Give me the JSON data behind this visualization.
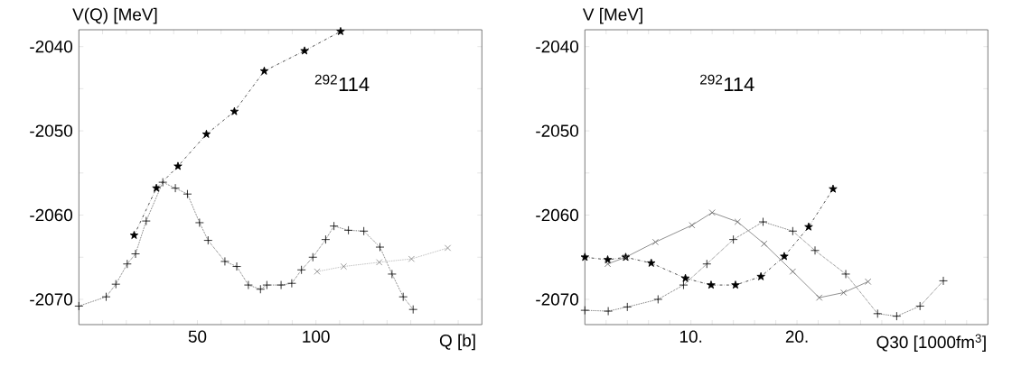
{
  "chart_data": [
    {
      "type": "line",
      "xlabel": "Q [b]",
      "ylabel": "V(Q) [MeV]",
      "annotations": [
        "$^{292}$114"
      ],
      "xlim": [
        0,
        170
      ],
      "ylim": [
        -2073,
        -2038
      ],
      "xticks": [
        {
          "value": 10,
          "label": null
        },
        {
          "value": 20,
          "label": null
        },
        {
          "value": 30,
          "label": null
        },
        {
          "value": 40,
          "label": null
        },
        50,
        {
          "value": 60,
          "label": null
        },
        {
          "value": 70,
          "label": null
        },
        {
          "value": 80,
          "label": null
        },
        {
          "value": 90,
          "label": null
        },
        100,
        {
          "value": 110,
          "label": null
        },
        {
          "value": 120,
          "label": null
        },
        {
          "value": 130,
          "label": null
        },
        {
          "value": 140,
          "label": null
        },
        {
          "value": 150,
          "label": null
        },
        {
          "value": 160,
          "label": null
        }
      ],
      "yticks": [
        -2070,
        {
          "value": -2065,
          "label": null
        },
        -2060,
        {
          "value": -2055,
          "label": null
        },
        -2050,
        {
          "value": -2045,
          "label": null
        },
        -2040
      ],
      "series": [
        {
          "color": "#000000",
          "marker": "star",
          "line_style": "dashed",
          "x": [
            23.3,
            32.7,
            41.8,
            53.8,
            65.6,
            78.2,
            95.2,
            110.4
          ],
          "values": [
            -2062.4,
            -2056.8,
            -2054.2,
            -2050.4,
            -2047.7,
            -2042.9,
            -2040.5,
            -2038.2
          ]
        },
        {
          "color": "#000000",
          "marker": "plus",
          "line_style": "dotted",
          "x": [
            0,
            11.5,
            15.6,
            20.4,
            23.9,
            28.4,
            35.4,
            40.7,
            45.8,
            50.9,
            54.5,
            61.6,
            66.6,
            71.5,
            76.6,
            79.3,
            85.3,
            89.8,
            93.9,
            98.7,
            104.1,
            107.6,
            113.7,
            120.2,
            127,
            132.1,
            136.8,
            141
          ],
          "values": [
            -2070.8,
            -2069.7,
            -2068.2,
            -2065.8,
            -2064.6,
            -2060.7,
            -2056.1,
            -2056.8,
            -2057.5,
            -2060.9,
            -2063.0,
            -2065.5,
            -2066.1,
            -2068.3,
            -2068.8,
            -2068.3,
            -2068.3,
            -2068.1,
            -2066.5,
            -2065.0,
            -2062.9,
            -2061.3,
            -2061.8,
            -2061.9,
            -2063.8,
            -2067.0,
            -2069.7,
            -2071.2
          ]
        },
        {
          "color": "#808080",
          "marker": "cross",
          "line_style": "dotted",
          "x": [
            100.5,
            111.7,
            126.7,
            140.3,
            155.6
          ],
          "values": [
            -2066.7,
            -2066.1,
            -2065.6,
            -2065.2,
            -2063.9
          ]
        }
      ]
    },
    {
      "type": "line",
      "xlabel": "Q30 [1000fm$^{3}$]",
      "ylabel": "V [MeV]",
      "annotations": [
        "$^{292}$114"
      ],
      "xlim": [
        0,
        38
      ],
      "ylim": [
        -2073,
        -2038
      ],
      "xticks": [
        {
          "value": 2,
          "label": null
        },
        {
          "value": 4,
          "label": null
        },
        {
          "value": 6,
          "label": null
        },
        {
          "value": 8,
          "label": null
        },
        {
          "value": 10,
          "label": "10."
        },
        {
          "value": 12,
          "label": null
        },
        {
          "value": 14,
          "label": null
        },
        {
          "value": 16,
          "label": null
        },
        {
          "value": 18,
          "label": null
        },
        {
          "value": 20,
          "label": "20."
        },
        {
          "value": 22,
          "label": null
        },
        {
          "value": 24,
          "label": null
        },
        {
          "value": 26,
          "label": null
        },
        {
          "value": 28,
          "label": null
        },
        {
          "value": 30,
          "label": null
        },
        {
          "value": 32,
          "label": null
        },
        {
          "value": 34,
          "label": null
        },
        {
          "value": 36,
          "label": null
        }
      ],
      "yticks": [
        -2070,
        {
          "value": -2065,
          "label": null
        },
        -2060,
        {
          "value": -2055,
          "label": null
        },
        -2050,
        {
          "value": -2045,
          "label": null
        },
        -2040
      ],
      "series": [
        {
          "color": "#000000",
          "marker": "star",
          "line_style": "dashed",
          "x": [
            0,
            2.15,
            3.85,
            6.26,
            9.48,
            11.9,
            14.2,
            16.6,
            18.8,
            21.1,
            23.4
          ],
          "values": [
            -2065.0,
            -2065.3,
            -2065.0,
            -2065.7,
            -2067.5,
            -2068.3,
            -2068.3,
            -2067.3,
            -2064.9,
            -2061.4,
            -2056.9
          ]
        },
        {
          "color": "#606060",
          "marker": "cross",
          "line_style": "solid",
          "x": [
            2.15,
            3.85,
            6.65,
            10.1,
            12.0,
            14.4,
            16.9,
            19.6,
            22.1,
            24.4,
            26.7
          ],
          "values": [
            -2065.8,
            -2065.0,
            -2063.2,
            -2061.2,
            -2059.7,
            -2060.8,
            -2063.4,
            -2066.7,
            -2069.8,
            -2069.2,
            -2067.9
          ]
        },
        {
          "color": "#000000",
          "marker": "plus",
          "line_style": "dotted",
          "x": [
            0,
            2.2,
            4.0,
            6.9,
            9.3,
            11.5,
            14.0,
            16.8,
            19.6,
            21.7,
            24.6,
            27.6,
            29.4,
            31.6,
            33.8
          ],
          "values": [
            -2071.3,
            -2071.4,
            -2070.9,
            -2070.0,
            -2068.3,
            -2065.8,
            -2062.9,
            -2060.8,
            -2061.9,
            -2064.2,
            -2067.0,
            -2071.7,
            -2072.0,
            -2070.8,
            -2067.8
          ]
        }
      ]
    }
  ]
}
